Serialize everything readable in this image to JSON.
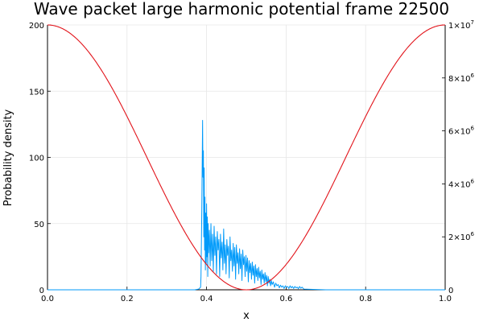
{
  "chart_data": {
    "type": "line",
    "title": "Wave packet large harmonic potential frame 22500",
    "xlabel": "x",
    "ylabel": "Probability density",
    "xlim": [
      0,
      1
    ],
    "ylim": [
      0,
      200
    ],
    "y2lim": [
      0,
      10000000
    ],
    "grid": true,
    "legend": "none",
    "x_ticks": [
      {
        "value": 0.0,
        "label": "0.0"
      },
      {
        "value": 0.2,
        "label": "0.2"
      },
      {
        "value": 0.4,
        "label": "0.4"
      },
      {
        "value": 0.6,
        "label": "0.6"
      },
      {
        "value": 0.8,
        "label": "0.8"
      },
      {
        "value": 1.0,
        "label": "1.0"
      }
    ],
    "y_ticks": [
      {
        "value": 0,
        "label": "0"
      },
      {
        "value": 50,
        "label": "50"
      },
      {
        "value": 100,
        "label": "100"
      },
      {
        "value": 150,
        "label": "150"
      },
      {
        "value": 200,
        "label": "200"
      }
    ],
    "y2_ticks": [
      {
        "value": 0,
        "base": "0",
        "exp": ""
      },
      {
        "value": 2000000,
        "base": "2×10",
        "exp": "6"
      },
      {
        "value": 4000000,
        "base": "4×10",
        "exp": "6"
      },
      {
        "value": 6000000,
        "base": "6×10",
        "exp": "6"
      },
      {
        "value": 8000000,
        "base": "8×10",
        "exp": "6"
      },
      {
        "value": 10000000,
        "base": "1×10",
        "exp": "7"
      }
    ],
    "series": [
      {
        "axis": "left",
        "color": "#009AFA",
        "x": [
          0.0,
          0.1,
          0.2,
          0.3,
          0.37,
          0.38,
          0.385,
          0.386,
          0.388,
          0.39,
          0.391,
          0.392,
          0.393,
          0.394,
          0.395,
          0.396,
          0.397,
          0.398,
          0.399,
          0.4,
          0.401,
          0.402,
          0.403,
          0.404,
          0.405,
          0.407,
          0.409,
          0.411,
          0.413,
          0.415,
          0.417,
          0.419,
          0.421,
          0.423,
          0.425,
          0.427,
          0.429,
          0.431,
          0.433,
          0.435,
          0.437,
          0.439,
          0.441,
          0.443,
          0.445,
          0.447,
          0.449,
          0.451,
          0.453,
          0.455,
          0.457,
          0.459,
          0.461,
          0.463,
          0.465,
          0.467,
          0.469,
          0.471,
          0.473,
          0.475,
          0.477,
          0.479,
          0.481,
          0.483,
          0.485,
          0.487,
          0.489,
          0.491,
          0.493,
          0.495,
          0.497,
          0.499,
          0.501,
          0.503,
          0.505,
          0.507,
          0.509,
          0.511,
          0.513,
          0.515,
          0.517,
          0.519,
          0.521,
          0.523,
          0.525,
          0.527,
          0.529,
          0.531,
          0.533,
          0.535,
          0.537,
          0.539,
          0.541,
          0.543,
          0.545,
          0.547,
          0.549,
          0.551,
          0.553,
          0.555,
          0.557,
          0.559,
          0.561,
          0.563,
          0.565,
          0.568,
          0.571,
          0.574,
          0.577,
          0.58,
          0.583,
          0.586,
          0.589,
          0.592,
          0.595,
          0.598,
          0.601,
          0.604,
          0.607,
          0.61,
          0.613,
          0.616,
          0.619,
          0.622,
          0.625,
          0.628,
          0.631,
          0.634,
          0.637,
          0.64,
          0.645,
          0.7,
          0.8,
          0.9,
          1.0
        ],
        "y": [
          0,
          0,
          0,
          0,
          0,
          0.5,
          2,
          10,
          60,
          128,
          85,
          105,
          40,
          92,
          30,
          70,
          15,
          58,
          20,
          65,
          25,
          55,
          10,
          50,
          28,
          45,
          18,
          50,
          22,
          42,
          14,
          48,
          26,
          40,
          12,
          44,
          30,
          38,
          10,
          42,
          24,
          36,
          15,
          46,
          20,
          34,
          12,
          38,
          26,
          33,
          9,
          40,
          22,
          30,
          14,
          35,
          18,
          32,
          8,
          34,
          20,
          28,
          12,
          31,
          16,
          27,
          7,
          30,
          19,
          25,
          10,
          26,
          14,
          24,
          6,
          22,
          13,
          20,
          8,
          21,
          11,
          18,
          5,
          19,
          10,
          16,
          7,
          17,
          9,
          14,
          4,
          15,
          8,
          12,
          5,
          13,
          6,
          11,
          3,
          10,
          5,
          8,
          3,
          7,
          4,
          6,
          2,
          5,
          3,
          4,
          1.5,
          3.5,
          2,
          3,
          1,
          3,
          2,
          2.5,
          1,
          3,
          1.5,
          2.5,
          1,
          2.5,
          1.5,
          2,
          0.8,
          2.5,
          1.2,
          2,
          0.5,
          0,
          0,
          0,
          0
        ]
      },
      {
        "axis": "right",
        "color": "#E2141B",
        "function": "cos2pi",
        "amplitude": 10000000,
        "center": 0.5
      }
    ]
  }
}
